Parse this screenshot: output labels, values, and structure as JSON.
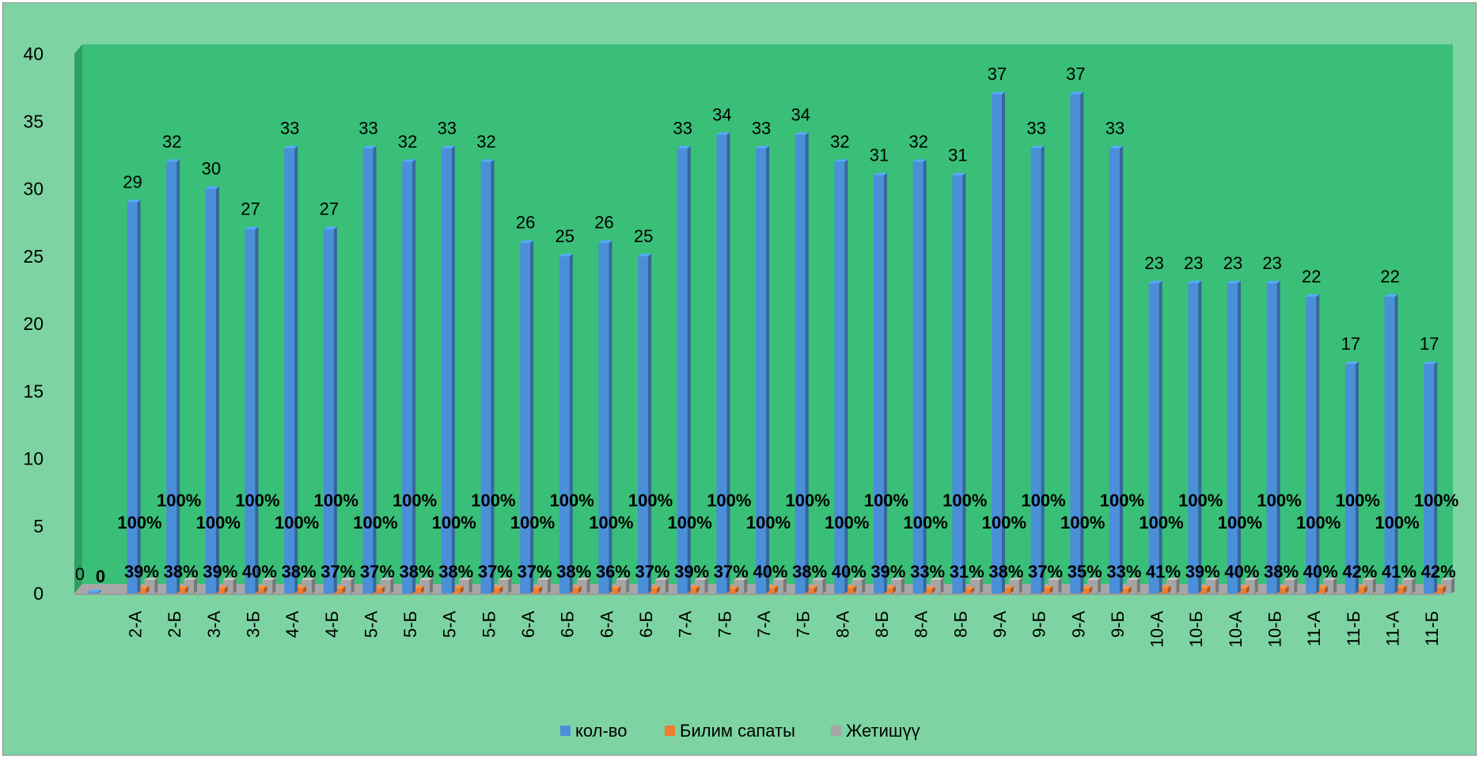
{
  "chart_data": {
    "type": "bar",
    "title": "",
    "xlabel": "",
    "ylabel": "",
    "ylim": [
      0,
      40
    ],
    "yticks": [
      "0",
      "5",
      "10",
      "15",
      "20",
      "25",
      "30",
      "35",
      "40"
    ],
    "grid": false,
    "legend_position": "bottom",
    "background_color": "#7dd4a2",
    "plot_color": "#39bf77",
    "categories": [
      "",
      "2-А",
      "2-Б",
      "3-А",
      "3-Б",
      "4-А",
      "4-Б",
      "5-А",
      "5-Б",
      "5-А",
      "5-Б",
      "6-А",
      "6-Б",
      "6-А",
      "6-Б",
      "7-А",
      "7-Б",
      "7-А",
      "7-Б",
      "8-А",
      "8-Б",
      "8-А",
      "8-Б",
      "9-А",
      "9-Б",
      "9-А",
      "9-Б",
      "10-А",
      "10-Б",
      "10-А",
      "10-Б",
      "11-А",
      "11-Б",
      "11-А",
      "11-Б"
    ],
    "series": [
      {
        "name": "кол-во",
        "color": "#4a8fd8",
        "values": [
          0,
          29,
          32,
          30,
          27,
          33,
          27,
          33,
          32,
          33,
          32,
          26,
          25,
          26,
          25,
          33,
          34,
          33,
          34,
          32,
          31,
          32,
          31,
          37,
          33,
          37,
          33,
          23,
          23,
          23,
          23,
          22,
          17,
          22,
          17
        ],
        "labels": [
          "0",
          "29",
          "32",
          "30",
          "27",
          "33",
          "27",
          "33",
          "32",
          "33",
          "32",
          "26",
          "25",
          "26",
          "25",
          "33",
          "34",
          "33",
          "34",
          "32",
          "31",
          "32",
          "31",
          "37",
          "33",
          "37",
          "33",
          "23",
          "23",
          "23",
          "23",
          "22",
          "17",
          "22",
          "17"
        ]
      },
      {
        "name": "Билим сапаты",
        "color": "#ed7d31",
        "values": [
          0,
          0.39,
          0.38,
          0.39,
          0.4,
          0.38,
          0.37,
          0.37,
          0.38,
          0.38,
          0.37,
          0.37,
          0.38,
          0.36,
          0.37,
          0.39,
          0.37,
          0.4,
          0.38,
          0.4,
          0.39,
          0.33,
          0.31,
          0.38,
          0.37,
          0.35,
          0.33,
          0.41,
          0.39,
          0.4,
          0.38,
          0.4,
          0.42,
          0.41,
          0.42
        ],
        "labels": [
          "0",
          "39%",
          "38%",
          "39%",
          "40%",
          "38%",
          "37%",
          "37%",
          "38%",
          "38%",
          "37%",
          "37%",
          "38%",
          "36%",
          "37%",
          "39%",
          "37%",
          "40%",
          "38%",
          "40%",
          "39%",
          "33%",
          "31%",
          "38%",
          "37%",
          "35%",
          "33%",
          "41%",
          "39%",
          "40%",
          "38%",
          "40%",
          "42%",
          "41%",
          "42%"
        ]
      },
      {
        "name": "Жетишүү",
        "color": "#a5a5a5",
        "values": [
          0,
          1,
          1,
          1,
          1,
          1,
          1,
          1,
          1,
          1,
          1,
          1,
          1,
          1,
          1,
          1,
          1,
          1,
          1,
          1,
          1,
          1,
          1,
          1,
          1,
          1,
          1,
          1,
          1,
          1,
          1,
          1,
          1,
          1,
          1
        ],
        "labels": [
          "",
          "100%",
          "100%",
          "100%",
          "100%",
          "100%",
          "100%",
          "100%",
          "100%",
          "100%",
          "100%",
          "100%",
          "100%",
          "100%",
          "100%",
          "100%",
          "100%",
          "100%",
          "100%",
          "100%",
          "100%",
          "100%",
          "100%",
          "100%",
          "100%",
          "100%",
          "100%",
          "100%",
          "100%",
          "100%",
          "100%",
          "100%",
          "100%",
          "100%",
          "100%"
        ]
      }
    ]
  }
}
